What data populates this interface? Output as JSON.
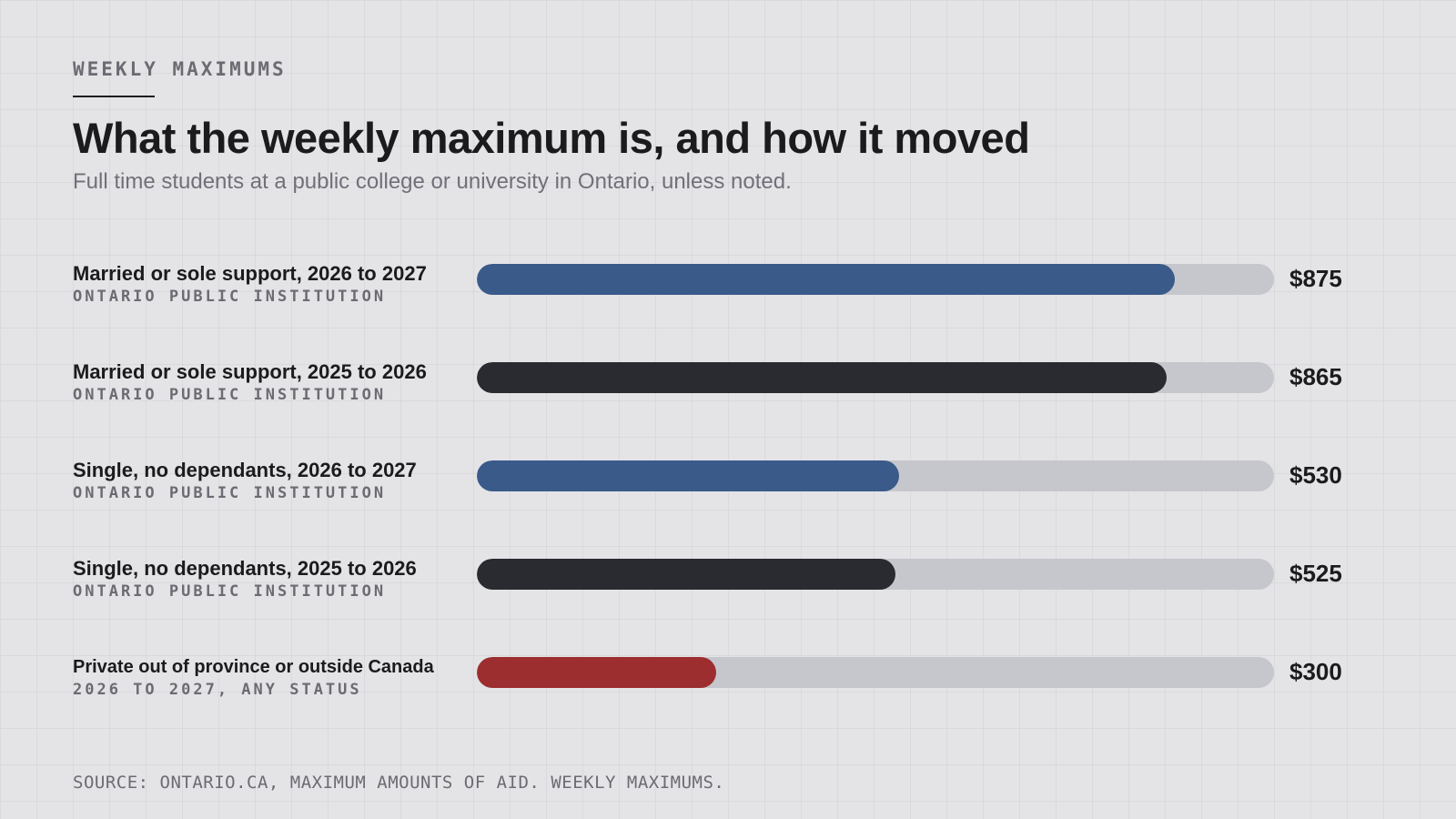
{
  "header": {
    "eyebrow": "WEEKLY MAXIMUMS",
    "title": "What the weekly maximum is, and how it moved",
    "subtitle": "Full time students at a public college or university in Ontario, unless noted."
  },
  "source": "SOURCE: ONTARIO.CA, MAXIMUM AMOUNTS OF AID. WEEKLY MAXIMUMS.",
  "colors": {
    "blue": "#3a5a8a",
    "dark": "#2a2b30",
    "red": "#9c2e30",
    "track": "#c6c7cc"
  },
  "chart_data": {
    "type": "bar",
    "orientation": "horizontal",
    "xlim": [
      0,
      1000
    ],
    "grid": false,
    "categories": [
      "Married or sole support, 2026 to 2027",
      "Married or sole support, 2025 to 2026",
      "Single, no dependants, 2026 to 2027",
      "Single, no dependants, 2025 to 2026",
      "Private out of province or outside Canada"
    ],
    "values": [
      875,
      865,
      530,
      525,
      300
    ],
    "rows": [
      {
        "label": "Married or sole support, 2026 to 2027",
        "sublabel": "ONTARIO PUBLIC INSTITUTION",
        "value": 875,
        "value_label": "$875",
        "color": "#3a5a8a"
      },
      {
        "label": "Married or sole support, 2025 to 2026",
        "sublabel": "ONTARIO PUBLIC INSTITUTION",
        "value": 865,
        "value_label": "$865",
        "color": "#2a2b30"
      },
      {
        "label": "Single, no dependants, 2026 to 2027",
        "sublabel": "ONTARIO PUBLIC INSTITUTION",
        "value": 530,
        "value_label": "$530",
        "color": "#3a5a8a"
      },
      {
        "label": "Single, no dependants, 2025 to 2026",
        "sublabel": "ONTARIO PUBLIC INSTITUTION",
        "value": 525,
        "value_label": "$525",
        "color": "#2a2b30"
      },
      {
        "label": "Private out of province or outside Canada",
        "sublabel": "2026 TO 2027, ANY STATUS",
        "value": 300,
        "value_label": "$300",
        "color": "#9c2e30"
      }
    ]
  }
}
